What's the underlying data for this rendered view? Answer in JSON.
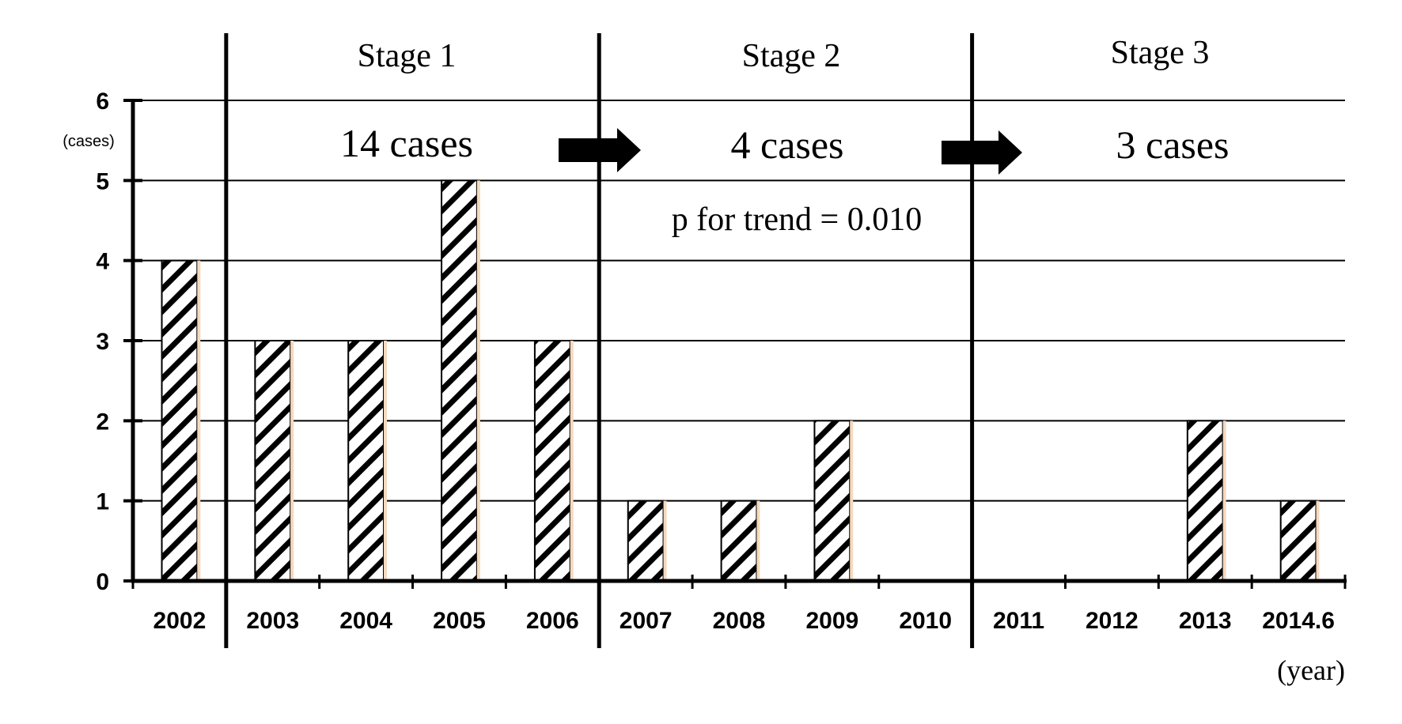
{
  "chart_data": {
    "type": "bar",
    "categories": [
      "2002",
      "2003",
      "2004",
      "2005",
      "2006",
      "2007",
      "2008",
      "2009",
      "2010",
      "2011",
      "2012",
      "2013",
      "2014.6"
    ],
    "values": [
      4,
      3,
      3,
      5,
      3,
      1,
      1,
      2,
      0,
      0,
      0,
      2,
      1
    ],
    "ylim": [
      0,
      6
    ],
    "yticks": [
      "0",
      "1",
      "2",
      "3",
      "4",
      "5",
      "6"
    ],
    "ylabel": "(cases)",
    "xlabel": "(year)",
    "grid": true,
    "bar_pattern": "diagonal-hatch",
    "stages": [
      {
        "label": "Stage 1",
        "count_label": "14 cases",
        "start": "2003",
        "end": "2006"
      },
      {
        "label": "Stage 2",
        "count_label": "4 cases",
        "start": "2007",
        "end": "2010"
      },
      {
        "label": "Stage 3",
        "count_label": "3 cases",
        "start": "2011",
        "end": "2014.6"
      }
    ],
    "annotation": "p for trend = 0.010"
  },
  "colors": {
    "bar_edge": "#f5d9bd",
    "ink": "#000000",
    "background": "#ffffff"
  }
}
